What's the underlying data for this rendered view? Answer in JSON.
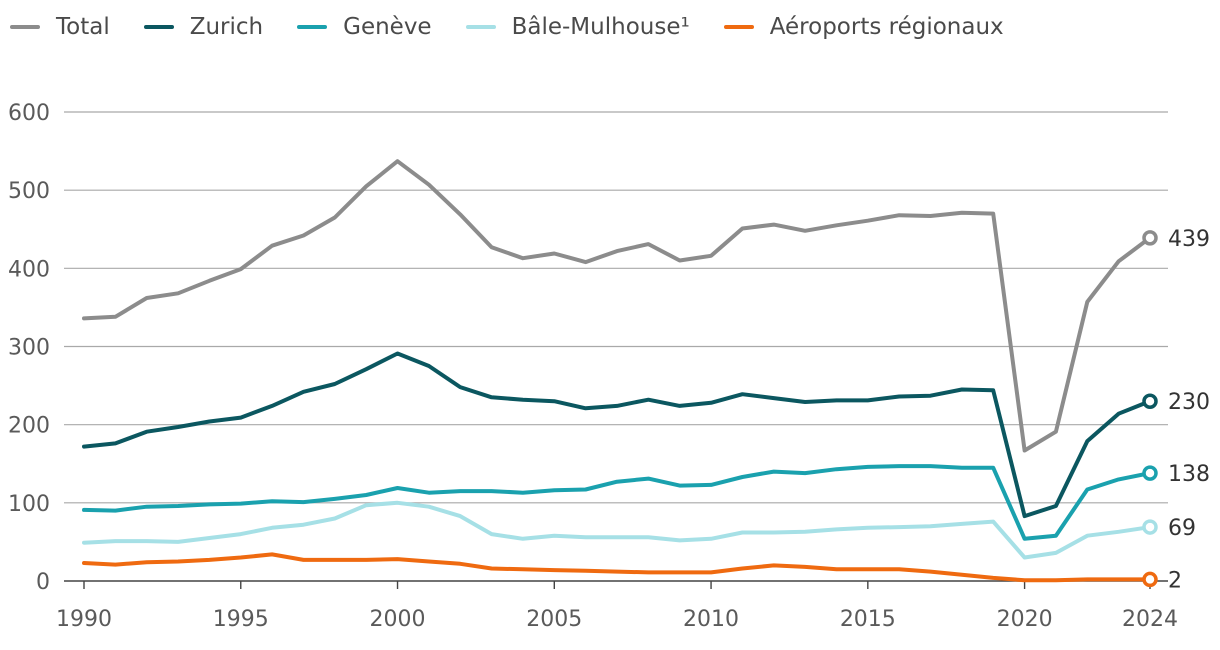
{
  "chart_data": {
    "type": "line",
    "title": "",
    "xlabel": "",
    "ylabel": "",
    "ylim": [
      0,
      600
    ],
    "xlim": [
      1990,
      2024
    ],
    "yticks": [
      0,
      100,
      200,
      300,
      400,
      500,
      600
    ],
    "xticks": [
      1990,
      1995,
      2000,
      2005,
      2010,
      2015,
      2020,
      2024
    ],
    "grid": "horizontal",
    "legend_position": "top-left",
    "x": [
      1990,
      1991,
      1992,
      1993,
      1994,
      1995,
      1996,
      1997,
      1998,
      1999,
      2000,
      2001,
      2002,
      2003,
      2004,
      2005,
      2006,
      2007,
      2008,
      2009,
      2010,
      2011,
      2012,
      2013,
      2014,
      2015,
      2016,
      2017,
      2018,
      2019,
      2020,
      2021,
      2022,
      2023,
      2024
    ],
    "series": [
      {
        "name": "Total",
        "color": "#8c8c8c",
        "end_label": "439",
        "values": [
          336,
          338,
          362,
          368,
          384,
          399,
          429,
          442,
          465,
          505,
          537,
          507,
          469,
          427,
          413,
          419,
          408,
          422,
          431,
          410,
          416,
          451,
          456,
          448,
          455,
          461,
          468,
          467,
          471,
          470,
          167,
          191,
          357,
          409,
          439
        ]
      },
      {
        "name": "Zurich",
        "color": "#0b5760",
        "end_label": "230",
        "values": [
          172,
          176,
          191,
          197,
          204,
          209,
          224,
          242,
          252,
          271,
          291,
          275,
          248,
          235,
          232,
          230,
          221,
          224,
          232,
          224,
          228,
          239,
          234,
          229,
          231,
          231,
          236,
          237,
          245,
          244,
          83,
          96,
          179,
          214,
          230
        ]
      },
      {
        "name": "Genève",
        "color": "#1aa1ae",
        "end_label": "138",
        "values": [
          91,
          90,
          95,
          96,
          98,
          99,
          102,
          101,
          105,
          110,
          119,
          113,
          115,
          115,
          113,
          116,
          117,
          127,
          131,
          122,
          123,
          133,
          140,
          138,
          143,
          146,
          147,
          147,
          145,
          145,
          54,
          58,
          117,
          130,
          138
        ]
      },
      {
        "name": "Bâle-Mulhouse¹",
        "color": "#a6e0e6",
        "end_label": "69",
        "values": [
          49,
          51,
          51,
          50,
          55,
          60,
          68,
          72,
          80,
          97,
          100,
          95,
          83,
          60,
          54,
          58,
          56,
          56,
          56,
          52,
          54,
          62,
          62,
          63,
          66,
          68,
          69,
          70,
          73,
          76,
          30,
          36,
          58,
          63,
          69
        ]
      },
      {
        "name": "Aéroports régionaux",
        "color": "#ef6a10",
        "end_label": "2",
        "values": [
          23,
          21,
          24,
          25,
          27,
          30,
          34,
          27,
          27,
          27,
          28,
          25,
          22,
          16,
          15,
          14,
          13,
          12,
          11,
          11,
          11,
          16,
          20,
          18,
          15,
          15,
          15,
          12,
          8,
          4,
          1,
          1,
          2,
          2,
          2
        ]
      }
    ]
  }
}
